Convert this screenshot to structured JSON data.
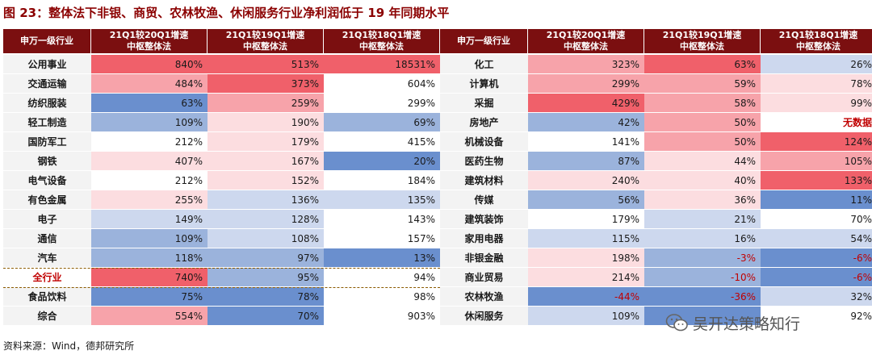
{
  "title": "图 23：整体法下非银、商贸、农林牧渔、休闲服务行业净利润低于 19 年同期水平",
  "source": "资料来源：Wind，德邦研究所",
  "watermark": "吴开达策略知行",
  "chart_data": {
    "type": "table",
    "columns": [
      "申万一级行业",
      "21Q1较20Q1增速\n中枢整体法",
      "21Q1较19Q1增速\n中枢整体法",
      "21Q1较18Q1增速\n中枢整体法"
    ],
    "left_rows": [
      {
        "industry": "公用事业",
        "v": [
          "840%",
          "513%",
          "18531%"
        ]
      },
      {
        "industry": "交通运输",
        "v": [
          "484%",
          "373%",
          "604%"
        ]
      },
      {
        "industry": "纺织服装",
        "v": [
          "63%",
          "259%",
          "299%"
        ]
      },
      {
        "industry": "轻工制造",
        "v": [
          "109%",
          "190%",
          "69%"
        ]
      },
      {
        "industry": "国防军工",
        "v": [
          "212%",
          "179%",
          "415%"
        ]
      },
      {
        "industry": "钢铁",
        "v": [
          "407%",
          "167%",
          "20%"
        ]
      },
      {
        "industry": "电气设备",
        "v": [
          "212%",
          "152%",
          "184%"
        ]
      },
      {
        "industry": "有色金属",
        "v": [
          "255%",
          "136%",
          "135%"
        ]
      },
      {
        "industry": "电子",
        "v": [
          "149%",
          "128%",
          "143%"
        ]
      },
      {
        "industry": "通信",
        "v": [
          "109%",
          "108%",
          "157%"
        ]
      },
      {
        "industry": "汽车",
        "v": [
          "118%",
          "97%",
          "13%"
        ]
      },
      {
        "industry": "全行业",
        "v": [
          "740%",
          "95%",
          "94%"
        ],
        "highlight": true
      },
      {
        "industry": "食品饮料",
        "v": [
          "75%",
          "78%",
          "98%"
        ]
      },
      {
        "industry": "综合",
        "v": [
          "554%",
          "70%",
          "903%"
        ]
      }
    ],
    "right_rows": [
      {
        "industry": "化工",
        "v": [
          "323%",
          "63%",
          "26%"
        ]
      },
      {
        "industry": "计算机",
        "v": [
          "299%",
          "59%",
          "78%"
        ]
      },
      {
        "industry": "采掘",
        "v": [
          "429%",
          "58%",
          "99%"
        ]
      },
      {
        "industry": "房地产",
        "v": [
          "42%",
          "50%",
          "无数据"
        ]
      },
      {
        "industry": "机械设备",
        "v": [
          "141%",
          "50%",
          "124%"
        ]
      },
      {
        "industry": "医药生物",
        "v": [
          "87%",
          "44%",
          "105%"
        ]
      },
      {
        "industry": "建筑材料",
        "v": [
          "240%",
          "40%",
          "133%"
        ]
      },
      {
        "industry": "传媒",
        "v": [
          "56%",
          "36%",
          "11%"
        ]
      },
      {
        "industry": "建筑装饰",
        "v": [
          "179%",
          "21%",
          "70%"
        ]
      },
      {
        "industry": "家用电器",
        "v": [
          "115%",
          "16%",
          "54%"
        ]
      },
      {
        "industry": "非银金融",
        "v": [
          "198%",
          "-3%",
          "-6%"
        ]
      },
      {
        "industry": "商业贸易",
        "v": [
          "214%",
          "-10%",
          "-6%"
        ]
      },
      {
        "industry": "农林牧渔",
        "v": [
          "-44%",
          "-36%",
          "32%"
        ]
      },
      {
        "industry": "休闲服务",
        "v": [
          "109%",
          "",
          "92%"
        ]
      }
    ],
    "colors": {
      "header_bg": "#7b0f10",
      "strong_red": "#f0606a",
      "mid_red": "#f7a3aa",
      "light_red": "#fcdde0",
      "white": "#ffffff",
      "light_blue": "#cdd8ee",
      "mid_blue": "#9bb3dc",
      "strong_blue": "#6a8fce"
    },
    "cell_colors_left": [
      [
        "strong_red",
        "strong_red",
        "strong_red"
      ],
      [
        "mid_red",
        "strong_red",
        "white"
      ],
      [
        "strong_blue",
        "mid_red",
        "white"
      ],
      [
        "mid_blue",
        "light_red",
        "mid_blue"
      ],
      [
        "white",
        "light_red",
        "white"
      ],
      [
        "light_red",
        "light_red",
        "strong_blue"
      ],
      [
        "white",
        "light_red",
        "white"
      ],
      [
        "light_red",
        "light_blue",
        "light_blue"
      ],
      [
        "light_blue",
        "light_blue",
        "white"
      ],
      [
        "mid_blue",
        "light_blue",
        "white"
      ],
      [
        "mid_blue",
        "mid_blue",
        "strong_blue"
      ],
      [
        "strong_red",
        "mid_blue",
        "white"
      ],
      [
        "strong_blue",
        "strong_blue",
        "white"
      ],
      [
        "mid_red",
        "strong_blue",
        "white"
      ]
    ],
    "cell_colors_right": [
      [
        "mid_red",
        "strong_red",
        "light_blue"
      ],
      [
        "mid_red",
        "mid_red",
        "light_red"
      ],
      [
        "strong_red",
        "mid_red",
        "light_red"
      ],
      [
        "mid_blue",
        "mid_red",
        "white"
      ],
      [
        "white",
        "mid_red",
        "strong_red"
      ],
      [
        "mid_blue",
        "light_red",
        "mid_red"
      ],
      [
        "light_red",
        "light_red",
        "strong_red"
      ],
      [
        "mid_blue",
        "light_red",
        "strong_blue"
      ],
      [
        "white",
        "light_blue",
        "white"
      ],
      [
        "light_blue",
        "light_blue",
        "light_blue"
      ],
      [
        "light_red",
        "mid_blue",
        "strong_blue"
      ],
      [
        "light_red",
        "mid_blue",
        "strong_blue"
      ],
      [
        "strong_blue",
        "strong_blue",
        "light_blue"
      ],
      [
        "light_blue",
        "strong_blue",
        "white"
      ]
    ]
  }
}
